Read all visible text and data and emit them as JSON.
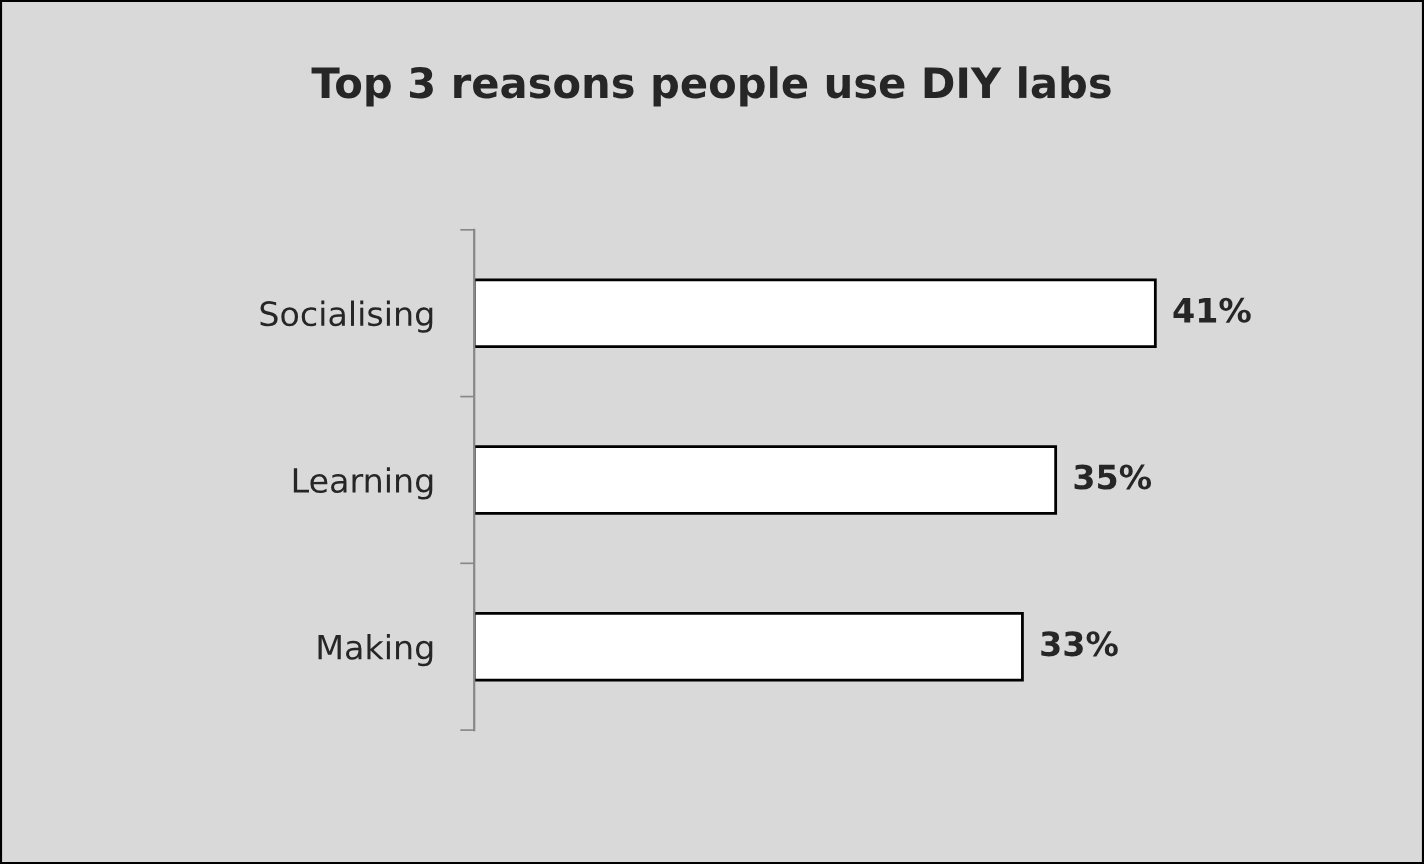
{
  "chart_data": {
    "type": "bar",
    "orientation": "horizontal",
    "title": "Top 3 reasons people use DIY labs",
    "categories": [
      "Socialising",
      "Learning",
      "Making"
    ],
    "values": [
      41,
      35,
      33
    ],
    "color": "#ffffff",
    "value_labels": [
      "41%",
      "35%",
      "33%"
    ],
    "grid": false,
    "legend": false
  }
}
